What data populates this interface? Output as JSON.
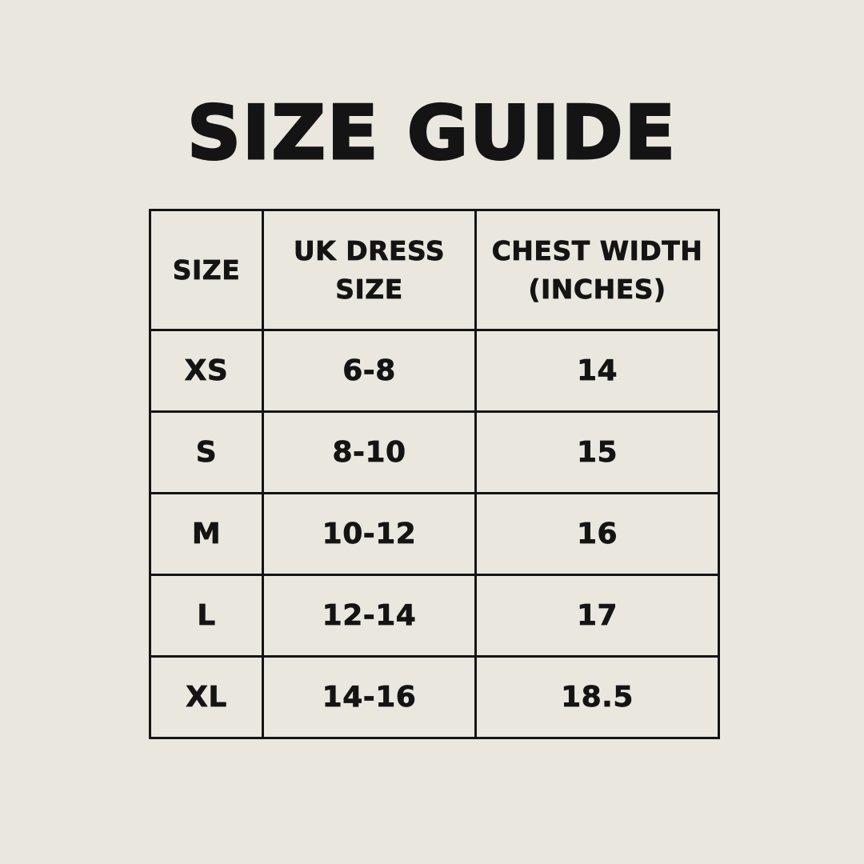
{
  "title": "SIZE GUIDE",
  "colors": {
    "background": "#EAE7DE",
    "text": "#141414",
    "border": "#141414"
  },
  "table": {
    "header_lines": [
      [
        "SIZE"
      ],
      [
        "UK DRESS",
        "SIZE"
      ],
      [
        "CHEST WIDTH",
        "(INCHES)"
      ]
    ]
  },
  "chart_data": {
    "type": "table",
    "title": "SIZE GUIDE",
    "columns": [
      "SIZE",
      "UK DRESS SIZE",
      "CHEST WIDTH (INCHES)"
    ],
    "rows": [
      [
        "XS",
        "6-8",
        "14"
      ],
      [
        "S",
        "8-10",
        "15"
      ],
      [
        "M",
        "10-12",
        "16"
      ],
      [
        "L",
        "12-14",
        "17"
      ],
      [
        "XL",
        "14-16",
        "18.5"
      ]
    ]
  }
}
